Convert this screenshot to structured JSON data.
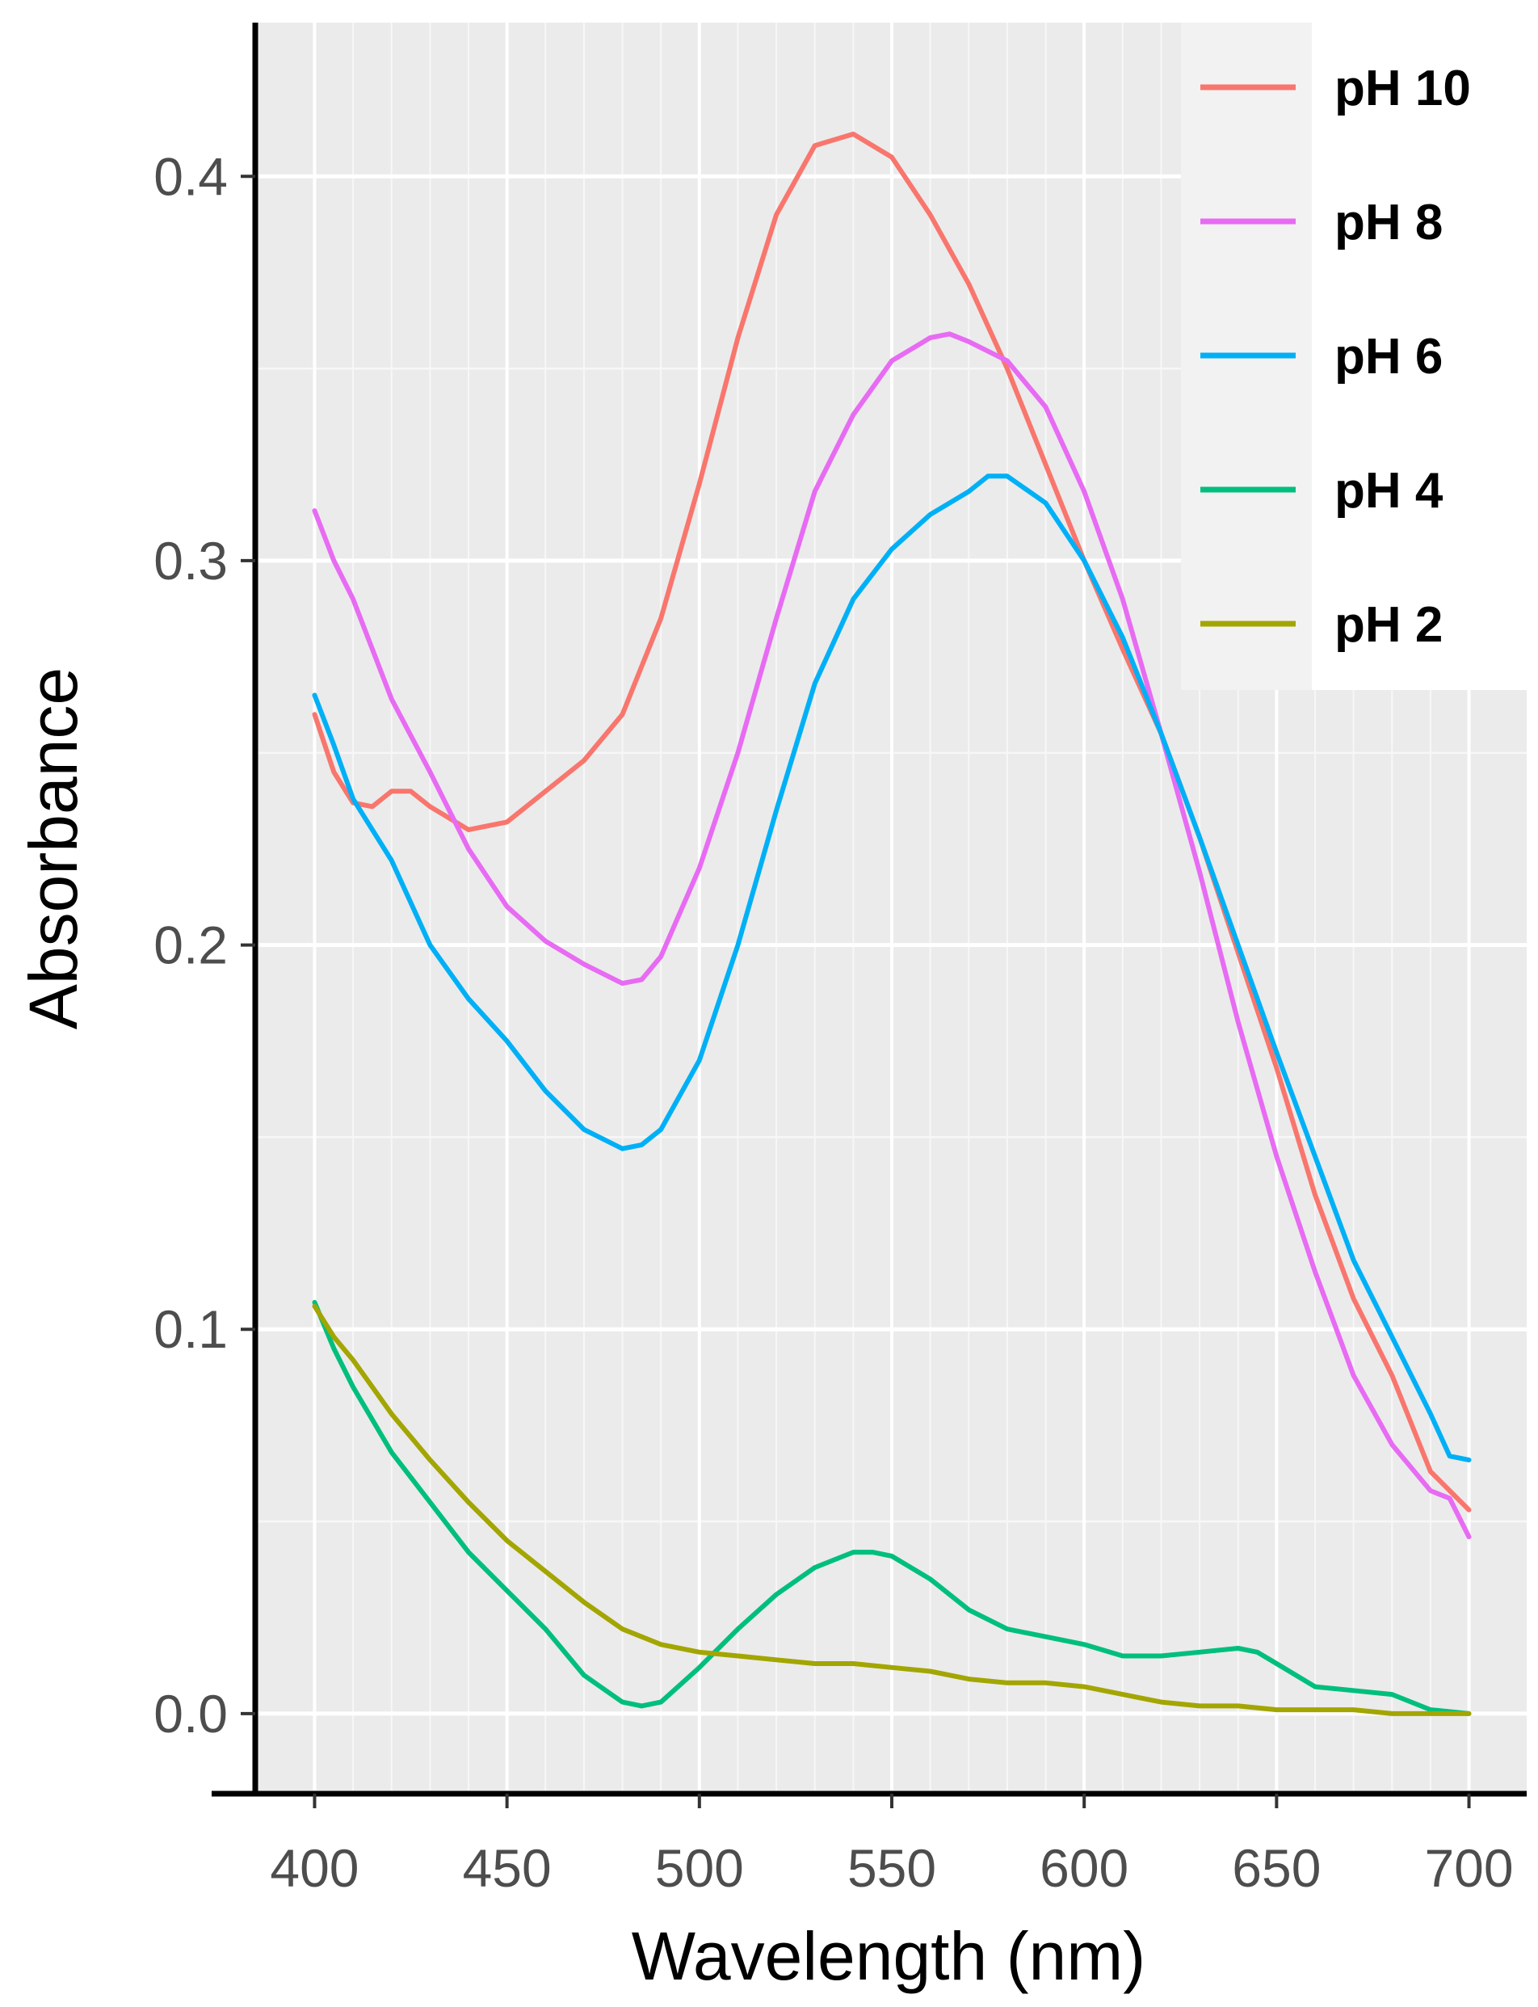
{
  "chart_data": {
    "type": "line",
    "title": "",
    "xlabel": "Wavelength (nm)",
    "ylabel": "Absorbance",
    "xlim": [
      385,
      715
    ],
    "ylim": [
      -0.02,
      0.44
    ],
    "x_ticks": [
      400,
      450,
      500,
      550,
      600,
      650,
      700
    ],
    "x_tick_labels": [
      "400",
      "450",
      "500",
      "550",
      "600",
      "650",
      "700"
    ],
    "y_ticks": [
      0.0,
      0.1,
      0.2,
      0.3,
      0.4
    ],
    "y_tick_labels": [
      "0.0",
      "0.1",
      "0.2",
      "0.3",
      "0.4"
    ],
    "grid": true,
    "legend_position": "top-right",
    "series": [
      {
        "name": "pH 10",
        "color": "#f8766d",
        "x": [
          400,
          405,
          410,
          415,
          420,
          425,
          430,
          440,
          450,
          460,
          470,
          480,
          490,
          500,
          510,
          520,
          530,
          540,
          550,
          560,
          570,
          580,
          590,
          600,
          610,
          620,
          630,
          640,
          650,
          660,
          670,
          680,
          690,
          695,
          700
        ],
        "y": [
          0.26,
          0.245,
          0.237,
          0.236,
          0.24,
          0.24,
          0.236,
          0.23,
          0.232,
          0.24,
          0.248,
          0.26,
          0.285,
          0.32,
          0.358,
          0.39,
          0.408,
          0.411,
          0.405,
          0.39,
          0.372,
          0.35,
          0.325,
          0.3,
          0.277,
          0.255,
          0.228,
          0.198,
          0.168,
          0.135,
          0.108,
          0.088,
          0.063,
          0.058,
          0.053
        ]
      },
      {
        "name": "pH 8",
        "color": "#e76bf3",
        "x": [
          400,
          405,
          410,
          420,
          430,
          440,
          450,
          460,
          470,
          480,
          485,
          490,
          500,
          510,
          520,
          530,
          540,
          550,
          560,
          565,
          570,
          580,
          590,
          600,
          610,
          620,
          630,
          640,
          650,
          660,
          670,
          680,
          690,
          695,
          700
        ],
        "y": [
          0.313,
          0.3,
          0.29,
          0.264,
          0.245,
          0.225,
          0.21,
          0.201,
          0.195,
          0.19,
          0.191,
          0.197,
          0.22,
          0.25,
          0.285,
          0.318,
          0.338,
          0.352,
          0.358,
          0.359,
          0.357,
          0.352,
          0.34,
          0.318,
          0.29,
          0.255,
          0.219,
          0.18,
          0.145,
          0.115,
          0.088,
          0.07,
          0.058,
          0.056,
          0.046
        ]
      },
      {
        "name": "pH 6",
        "color": "#00b0f6",
        "x": [
          400,
          405,
          410,
          420,
          430,
          440,
          450,
          460,
          470,
          480,
          485,
          490,
          500,
          510,
          520,
          530,
          540,
          550,
          560,
          570,
          575,
          580,
          590,
          600,
          610,
          620,
          630,
          640,
          650,
          660,
          670,
          680,
          690,
          695,
          700
        ],
        "y": [
          0.265,
          0.252,
          0.238,
          0.222,
          0.2,
          0.186,
          0.175,
          0.162,
          0.152,
          0.147,
          0.148,
          0.152,
          0.17,
          0.2,
          0.235,
          0.268,
          0.29,
          0.303,
          0.312,
          0.318,
          0.322,
          0.322,
          0.315,
          0.3,
          0.28,
          0.255,
          0.228,
          0.2,
          0.172,
          0.145,
          0.118,
          0.098,
          0.078,
          0.067,
          0.066
        ]
      },
      {
        "name": "pH 4",
        "color": "#00bf7d",
        "x": [
          400,
          405,
          410,
          420,
          430,
          440,
          450,
          460,
          470,
          480,
          485,
          490,
          500,
          510,
          520,
          530,
          540,
          545,
          550,
          560,
          570,
          580,
          590,
          600,
          610,
          620,
          630,
          640,
          645,
          650,
          660,
          670,
          680,
          690,
          700
        ],
        "y": [
          0.107,
          0.095,
          0.085,
          0.068,
          0.055,
          0.042,
          0.032,
          0.022,
          0.01,
          0.003,
          0.002,
          0.003,
          0.012,
          0.022,
          0.031,
          0.038,
          0.042,
          0.042,
          0.041,
          0.035,
          0.027,
          0.022,
          0.02,
          0.018,
          0.015,
          0.015,
          0.016,
          0.017,
          0.016,
          0.013,
          0.007,
          0.006,
          0.005,
          0.001,
          0.0
        ]
      },
      {
        "name": "pH 2",
        "color": "#a3a500",
        "x": [
          400,
          405,
          410,
          420,
          430,
          440,
          450,
          460,
          470,
          480,
          490,
          500,
          510,
          520,
          530,
          540,
          550,
          560,
          570,
          580,
          590,
          600,
          610,
          620,
          630,
          640,
          650,
          660,
          670,
          680,
          690,
          700
        ],
        "y": [
          0.106,
          0.098,
          0.092,
          0.078,
          0.066,
          0.055,
          0.045,
          0.037,
          0.029,
          0.022,
          0.018,
          0.016,
          0.015,
          0.014,
          0.013,
          0.013,
          0.012,
          0.011,
          0.009,
          0.008,
          0.008,
          0.007,
          0.005,
          0.003,
          0.002,
          0.002,
          0.001,
          0.001,
          0.001,
          0.0,
          0.0,
          0.0
        ]
      }
    ]
  }
}
